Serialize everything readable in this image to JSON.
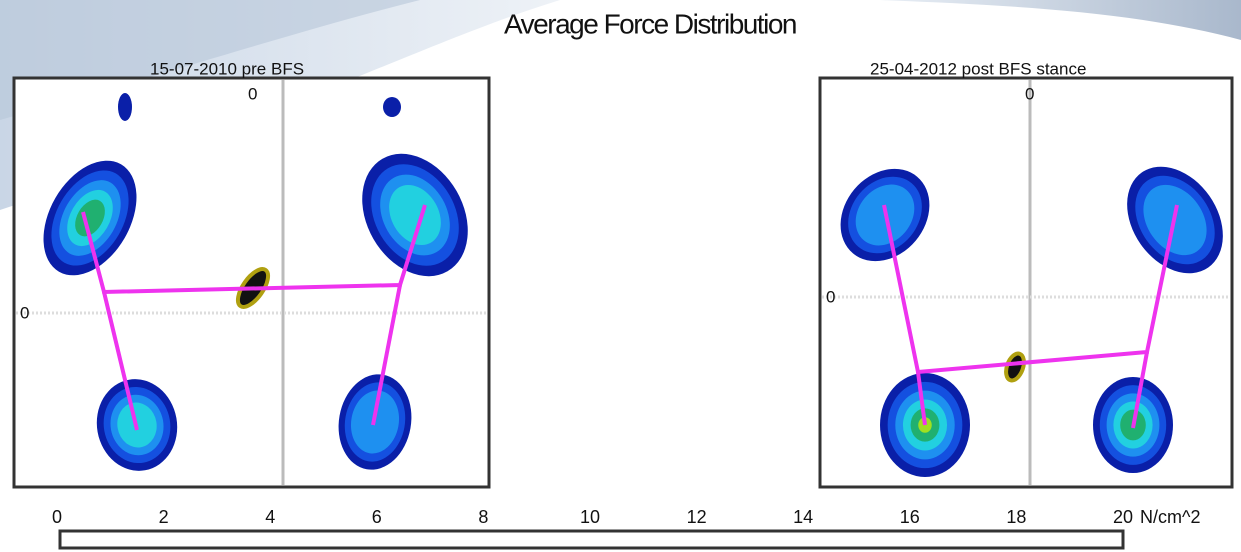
{
  "title": "Average Force Distribution",
  "panels": [
    {
      "label": "15-07-2010 pre BFS",
      "axis_labels": [
        "0",
        "0"
      ]
    },
    {
      "label": "25-04-2012 post BFS stance",
      "axis_labels": [
        "0",
        "0"
      ]
    }
  ],
  "scale": {
    "ticks": [
      0,
      2,
      4,
      6,
      8,
      10,
      12,
      14,
      16,
      18,
      20
    ],
    "unit": "N/cm^2"
  }
}
